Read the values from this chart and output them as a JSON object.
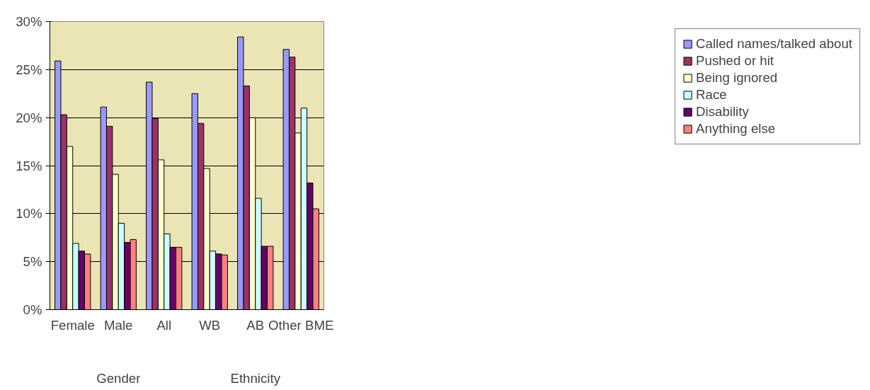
{
  "chart_data": {
    "type": "bar",
    "categories": [
      "Female",
      "Male",
      "All",
      "WB",
      "AB",
      "Other BME"
    ],
    "series": [
      {
        "name": "Called names/talked about",
        "color": "#9999ff",
        "values": [
          25.9,
          21.1,
          23.7,
          22.5,
          28.4,
          27.1
        ]
      },
      {
        "name": "Pushed or hit",
        "color": "#993366",
        "values": [
          20.3,
          19.1,
          19.9,
          19.4,
          23.3,
          26.3
        ]
      },
      {
        "name": "Being ignored",
        "color": "#ffffcc",
        "values": [
          17.0,
          14.1,
          15.6,
          14.7,
          20.0,
          18.4
        ]
      },
      {
        "name": "Race",
        "color": "#ccffff",
        "values": [
          6.9,
          9.0,
          7.9,
          6.1,
          11.6,
          21.0
        ]
      },
      {
        "name": "Disability",
        "color": "#660066",
        "values": [
          6.1,
          7.0,
          6.5,
          5.8,
          6.6,
          13.2
        ]
      },
      {
        "name": "Anything else",
        "color": "#ff8080",
        "values": [
          5.8,
          7.3,
          6.5,
          5.7,
          6.6,
          10.5
        ]
      }
    ],
    "ylim": [
      0,
      30
    ],
    "yticks": [
      {
        "value": 0,
        "label": "0%"
      },
      {
        "value": 5,
        "label": "5%"
      },
      {
        "value": 10,
        "label": "10%"
      },
      {
        "value": 15,
        "label": "15%"
      },
      {
        "value": 20,
        "label": "20%"
      },
      {
        "value": 25,
        "label": "25%"
      },
      {
        "value": 30,
        "label": "30%"
      }
    ],
    "annotations": [
      "Gender",
      "Ethnicity"
    ],
    "grid": "y",
    "legend": "right"
  }
}
